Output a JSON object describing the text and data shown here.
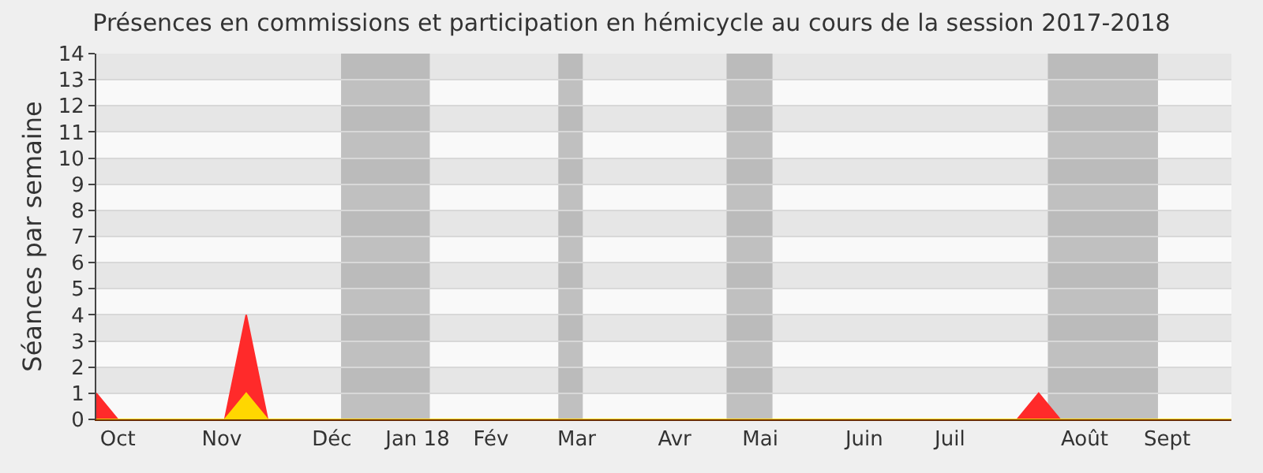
{
  "chart_data": {
    "type": "area",
    "title": "Présences en commissions et participation en hémicycle au cours de la session 2017-2018",
    "ylabel": "Séances par semaine",
    "series": [
      {
        "color": "#ff2a2a",
        "x": [
          "2017-09-25",
          "2017-10-02",
          "2017-11-06",
          "2017-11-13",
          "2017-11-20",
          "2018-07-23",
          "2018-07-30",
          "2018-08-06",
          "2018-10-01"
        ],
        "values": [
          1,
          0,
          0,
          4,
          0,
          0,
          1,
          0,
          0
        ]
      },
      {
        "color": "#ffd700",
        "x": [
          "2017-09-25",
          "2017-11-06",
          "2017-11-13",
          "2017-11-20",
          "2018-10-01"
        ],
        "values": [
          0,
          0,
          1,
          0,
          0
        ]
      }
    ],
    "xlim": [
      "2017-09-25",
      "2018-10-01"
    ],
    "xticks": [
      {
        "value": "2017-10-02",
        "label": "Oct"
      },
      {
        "value": "2017-11-05",
        "label": "Nov"
      },
      {
        "value": "2017-12-11",
        "label": "Déc"
      },
      {
        "value": "2018-01-08",
        "label": "Jan 18"
      },
      {
        "value": "2018-02-01",
        "label": "Fév"
      },
      {
        "value": "2018-03-01",
        "label": "Mar"
      },
      {
        "value": "2018-04-02",
        "label": "Avr"
      },
      {
        "value": "2018-04-30",
        "label": "Mai"
      },
      {
        "value": "2018-06-03",
        "label": "Juin"
      },
      {
        "value": "2018-07-01",
        "label": "Juil"
      },
      {
        "value": "2018-08-14",
        "label": "Août"
      },
      {
        "value": "2018-09-10",
        "label": "Sept"
      }
    ],
    "ylim": [
      0,
      14
    ],
    "yticks": [
      0,
      1,
      2,
      3,
      4,
      5,
      6,
      7,
      8,
      9,
      10,
      11,
      12,
      13,
      14
    ],
    "bands": [
      {
        "axis": "x",
        "from": "2017-12-14",
        "to": "2018-01-12",
        "color": "#a8a8a8"
      },
      {
        "axis": "x",
        "from": "2018-02-23",
        "to": "2018-03-03",
        "color": "#a8a8a8"
      },
      {
        "axis": "x",
        "from": "2018-04-19",
        "to": "2018-05-04",
        "color": "#a8a8a8"
      },
      {
        "axis": "x",
        "from": "2018-08-02",
        "to": "2018-09-07",
        "color": "#a8a8a8"
      }
    ],
    "grid": "y"
  }
}
